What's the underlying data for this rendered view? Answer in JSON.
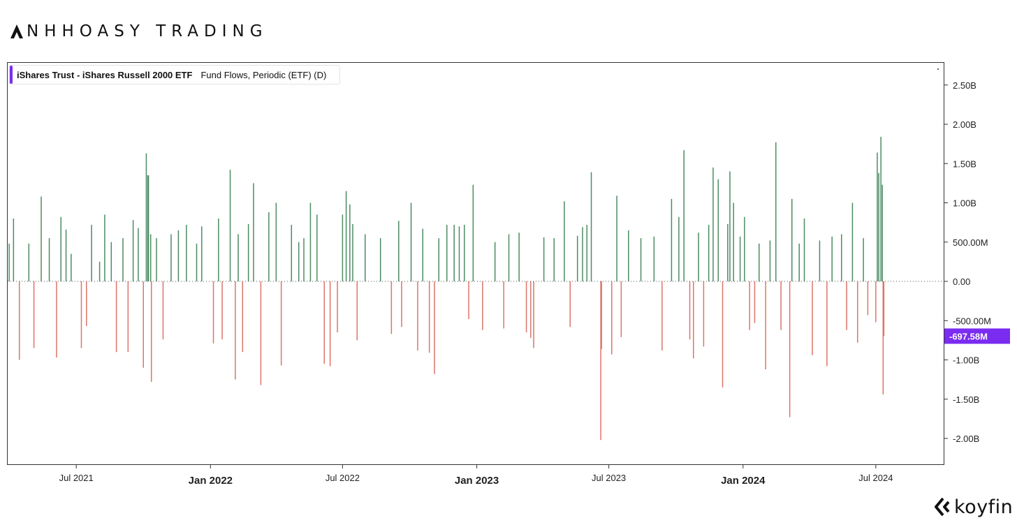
{
  "brand": {
    "text": "NHHOASY TRADING",
    "logo_icon": "triangle-logo-icon"
  },
  "watermark": {
    "text": "koyfin",
    "logo_icon": "koyfin-chevron-icon"
  },
  "legend": {
    "title": "iShares Trust - iShares Russell 2000 ETF",
    "subtitle": "Fund Flows, Periodic (ETF) (D)",
    "accent_color": "#7a2cf0"
  },
  "colors": {
    "positive": "#4c8c63",
    "negative": "#dd7469",
    "badge": "#7a2cf0"
  },
  "chart_data": {
    "type": "bar",
    "title": "",
    "xlabel": "",
    "ylabel": "",
    "ylim": [
      -2.35,
      2.7
    ],
    "y_unit": "billions USD",
    "xlim": [
      "2021-03-29",
      "2024-10-02"
    ],
    "y_ticks": [
      {
        "value": 2.5,
        "label": "2.50B"
      },
      {
        "value": 2.0,
        "label": "2.00B"
      },
      {
        "value": 1.5,
        "label": "1.50B"
      },
      {
        "value": 1.0,
        "label": "1.00B"
      },
      {
        "value": 0.5,
        "label": "500.00M"
      },
      {
        "value": 0,
        "label": "0.00"
      },
      {
        "value": -0.5,
        "label": "-500.00M"
      },
      {
        "value": -1.0,
        "label": "-1.00B"
      },
      {
        "value": -1.5,
        "label": "-1.50B"
      },
      {
        "value": -2.0,
        "label": "-2.00B"
      }
    ],
    "x_ticks": [
      {
        "date": "2021-07-01",
        "label": "Jul 2021",
        "major": false
      },
      {
        "date": "2022-01-01",
        "label": "Jan 2022",
        "major": true
      },
      {
        "date": "2022-07-01",
        "label": "Jul 2022",
        "major": false
      },
      {
        "date": "2023-01-01",
        "label": "Jan 2023",
        "major": true
      },
      {
        "date": "2023-07-01",
        "label": "Jul 2023",
        "major": false
      },
      {
        "date": "2024-01-01",
        "label": "Jan 2024",
        "major": true
      },
      {
        "date": "2024-07-01",
        "label": "Jul 2024",
        "major": false
      }
    ],
    "last_value": {
      "value": -0.69758,
      "label": "-697.58M"
    },
    "grid": false,
    "legend": "top-left",
    "series": [
      {
        "values": [
          [
            "2021-03-31",
            0.48
          ],
          [
            "2021-04-06",
            0.8
          ],
          [
            "2021-04-14",
            -1.0
          ],
          [
            "2021-04-27",
            0.48
          ],
          [
            "2021-05-04",
            -0.85
          ],
          [
            "2021-05-14",
            1.08
          ],
          [
            "2021-05-25",
            0.55
          ],
          [
            "2021-06-04",
            -0.97
          ],
          [
            "2021-06-10",
            0.82
          ],
          [
            "2021-06-17",
            0.66
          ],
          [
            "2021-06-24",
            0.35
          ],
          [
            "2021-07-08",
            -0.85
          ],
          [
            "2021-07-15",
            -0.57
          ],
          [
            "2021-07-22",
            0.72
          ],
          [
            "2021-08-02",
            0.25
          ],
          [
            "2021-08-09",
            0.85
          ],
          [
            "2021-08-18",
            0.5
          ],
          [
            "2021-08-25",
            -0.9
          ],
          [
            "2021-09-03",
            0.55
          ],
          [
            "2021-09-10",
            -0.9
          ],
          [
            "2021-09-17",
            0.78
          ],
          [
            "2021-09-24",
            0.68
          ],
          [
            "2021-10-01",
            -1.1
          ],
          [
            "2021-10-05",
            1.63
          ],
          [
            "2021-10-07",
            1.35
          ],
          [
            "2021-10-08",
            1.35
          ],
          [
            "2021-10-11",
            0.6
          ],
          [
            "2021-10-12",
            -1.28
          ],
          [
            "2021-10-19",
            0.55
          ],
          [
            "2021-10-28",
            -0.74
          ],
          [
            "2021-11-08",
            0.6
          ],
          [
            "2021-11-18",
            0.65
          ],
          [
            "2021-11-29",
            0.72
          ],
          [
            "2021-12-13",
            0.48
          ],
          [
            "2021-12-20",
            0.7
          ],
          [
            "2022-01-05",
            -0.79
          ],
          [
            "2022-01-12",
            0.8
          ],
          [
            "2022-01-17",
            -0.74
          ],
          [
            "2022-01-28",
            1.42
          ],
          [
            "2022-02-04",
            -1.25
          ],
          [
            "2022-02-08",
            0.6
          ],
          [
            "2022-02-14",
            -0.9
          ],
          [
            "2022-02-22",
            0.73
          ],
          [
            "2022-03-01",
            1.25
          ],
          [
            "2022-03-11",
            -1.32
          ],
          [
            "2022-03-22",
            0.88
          ],
          [
            "2022-04-01",
            1.0
          ],
          [
            "2022-04-08",
            -1.07
          ],
          [
            "2022-04-22",
            0.72
          ],
          [
            "2022-05-02",
            0.5
          ],
          [
            "2022-05-09",
            0.55
          ],
          [
            "2022-05-18",
            1.0
          ],
          [
            "2022-05-27",
            0.85
          ],
          [
            "2022-06-06",
            -1.05
          ],
          [
            "2022-06-14",
            -1.08
          ],
          [
            "2022-06-24",
            -0.65
          ],
          [
            "2022-07-01",
            0.85
          ],
          [
            "2022-07-06",
            1.15
          ],
          [
            "2022-07-11",
            0.98
          ],
          [
            "2022-07-15",
            0.73
          ],
          [
            "2022-07-21",
            -0.75
          ],
          [
            "2022-08-01",
            0.6
          ],
          [
            "2022-08-22",
            0.55
          ],
          [
            "2022-09-06",
            -0.67
          ],
          [
            "2022-09-16",
            0.77
          ],
          [
            "2022-09-20",
            -0.58
          ],
          [
            "2022-10-03",
            1.0
          ],
          [
            "2022-10-12",
            -0.88
          ],
          [
            "2022-10-19",
            0.67
          ],
          [
            "2022-10-28",
            -0.91
          ],
          [
            "2022-11-04",
            -1.18
          ],
          [
            "2022-11-10",
            0.55
          ],
          [
            "2022-11-21",
            0.72
          ],
          [
            "2022-12-01",
            0.72
          ],
          [
            "2022-12-08",
            0.7
          ],
          [
            "2022-12-15",
            0.72
          ],
          [
            "2022-12-21",
            -0.48
          ],
          [
            "2022-12-27",
            1.23
          ],
          [
            "2023-01-09",
            -0.62
          ],
          [
            "2023-01-26",
            0.5
          ],
          [
            "2023-02-07",
            -0.6
          ],
          [
            "2023-02-14",
            0.6
          ],
          [
            "2023-02-28",
            0.62
          ],
          [
            "2023-03-10",
            -0.65
          ],
          [
            "2023-03-16",
            -0.72
          ],
          [
            "2023-03-20",
            -0.85
          ],
          [
            "2023-04-03",
            0.56
          ],
          [
            "2023-04-17",
            0.55
          ],
          [
            "2023-05-01",
            1.02
          ],
          [
            "2023-05-09",
            -0.58
          ],
          [
            "2023-05-19",
            0.58
          ],
          [
            "2023-05-26",
            0.69
          ],
          [
            "2023-06-01",
            0.72
          ],
          [
            "2023-06-07",
            1.39
          ],
          [
            "2023-06-20",
            -2.02
          ],
          [
            "2023-06-21",
            -0.86
          ],
          [
            "2023-07-05",
            -0.93
          ],
          [
            "2023-07-12",
            1.09
          ],
          [
            "2023-07-18",
            -0.71
          ],
          [
            "2023-07-28",
            0.65
          ],
          [
            "2023-08-14",
            0.55
          ],
          [
            "2023-09-01",
            0.57
          ],
          [
            "2023-09-12",
            -0.88
          ],
          [
            "2023-09-25",
            1.05
          ],
          [
            "2023-10-05",
            0.82
          ],
          [
            "2023-10-12",
            1.67
          ],
          [
            "2023-10-20",
            -0.74
          ],
          [
            "2023-10-25",
            -0.98
          ],
          [
            "2023-11-01",
            0.62
          ],
          [
            "2023-11-08",
            -0.83
          ],
          [
            "2023-11-15",
            0.72
          ],
          [
            "2023-11-21",
            1.45
          ],
          [
            "2023-11-28",
            1.3
          ],
          [
            "2023-12-04",
            -1.35
          ],
          [
            "2023-12-11",
            0.73
          ],
          [
            "2023-12-14",
            1.4
          ],
          [
            "2023-12-19",
            1.0
          ],
          [
            "2023-12-28",
            0.57
          ],
          [
            "2024-01-03",
            0.82
          ],
          [
            "2024-01-10",
            -0.62
          ],
          [
            "2024-01-17",
            -0.53
          ],
          [
            "2024-01-23",
            0.48
          ],
          [
            "2024-02-01",
            -1.12
          ],
          [
            "2024-02-07",
            0.52
          ],
          [
            "2024-02-15",
            1.77
          ],
          [
            "2024-02-22",
            -0.62
          ],
          [
            "2024-03-05",
            -1.73
          ],
          [
            "2024-03-08",
            1.05
          ],
          [
            "2024-03-18",
            0.48
          ],
          [
            "2024-03-25",
            0.8
          ],
          [
            "2024-04-05",
            -0.94
          ],
          [
            "2024-04-15",
            0.52
          ],
          [
            "2024-04-25",
            -1.08
          ],
          [
            "2024-05-02",
            0.57
          ],
          [
            "2024-05-15",
            0.6
          ],
          [
            "2024-05-22",
            -0.62
          ],
          [
            "2024-05-30",
            1.0
          ],
          [
            "2024-06-06",
            -0.78
          ],
          [
            "2024-06-14",
            0.55
          ],
          [
            "2024-06-20",
            -0.43
          ],
          [
            "2024-07-01",
            -0.52
          ],
          [
            "2024-07-03",
            1.64
          ],
          [
            "2024-07-05",
            1.38
          ],
          [
            "2024-07-08",
            1.84
          ],
          [
            "2024-07-10",
            1.23
          ],
          [
            "2024-07-11",
            -1.44
          ],
          [
            "2024-07-12",
            -0.69758
          ]
        ]
      }
    ]
  }
}
